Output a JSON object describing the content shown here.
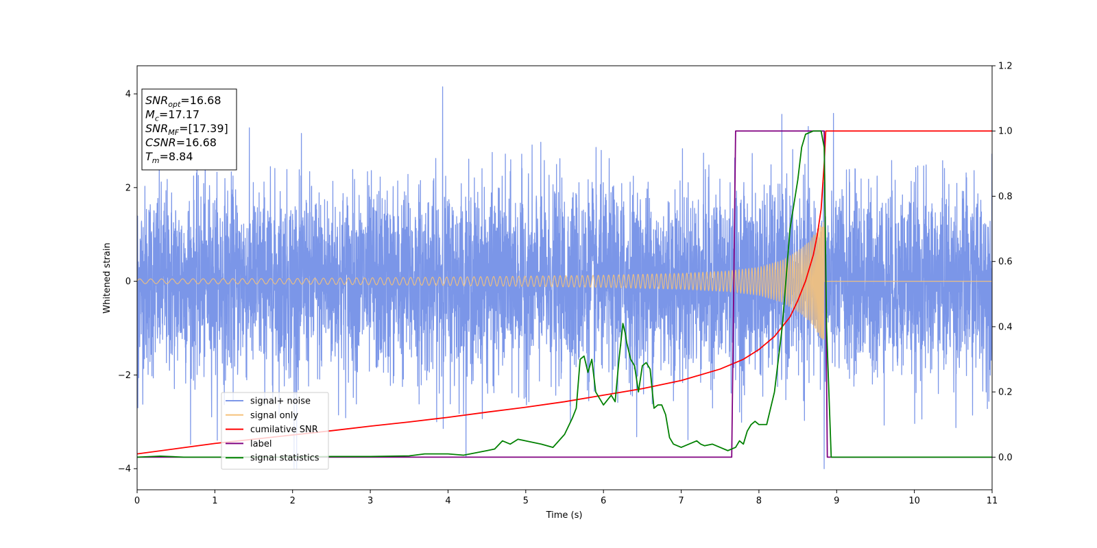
{
  "chart_data": {
    "type": "line",
    "xlabel": "Time (s)",
    "ylabel": "Whitened strain",
    "xlim": [
      0,
      11
    ],
    "ylim": [
      -4.45,
      4.6
    ],
    "y2lim": [
      -0.1,
      1.2
    ],
    "x_ticks": [
      "0",
      "1",
      "2",
      "3",
      "4",
      "5",
      "6",
      "7",
      "8",
      "9",
      "10",
      "11"
    ],
    "y_ticks": [
      "−4",
      "−2",
      "0",
      "2",
      "4"
    ],
    "y2_ticks": [
      "0.0",
      "0.2",
      "0.4",
      "0.6",
      "0.8",
      "1.0",
      "1.2"
    ],
    "grid": false,
    "legend_position": "lower-left",
    "annotation": {
      "lines": [
        {
          "main": "SNR",
          "sub": "opt",
          "value": "=16.68"
        },
        {
          "main": "M",
          "sub": "c",
          "value": "=17.17"
        },
        {
          "main": "SNR",
          "sub": "MF",
          "value": "=[17.39]"
        },
        {
          "main": "CSNR",
          "sub": "",
          "value": "=16.68"
        },
        {
          "main": "T",
          "sub": "m",
          "value": "=8.84"
        }
      ]
    },
    "series": [
      {
        "name": "signal+ noise",
        "axis": "left",
        "color": "#7b96e8",
        "kind": "noise",
        "noise_std": 1.0,
        "noise_peak_range": [
          -4.0,
          4.15
        ],
        "note_points": [
          [
            3.93,
            4.15
          ],
          [
            2.02,
            -4.0
          ],
          [
            8.84,
            -4.05
          ],
          [
            0.01,
            -2.7
          ]
        ]
      },
      {
        "name": "signal only",
        "axis": "left",
        "color": "#f5c27a",
        "kind": "chirp",
        "x_start": 0,
        "x_end": 8.84,
        "amplitude": [
          [
            0,
            0.05
          ],
          [
            2,
            0.06
          ],
          [
            4,
            0.09
          ],
          [
            6,
            0.13
          ],
          [
            7,
            0.17
          ],
          [
            7.6,
            0.22
          ],
          [
            8,
            0.3
          ],
          [
            8.3,
            0.45
          ],
          [
            8.5,
            0.65
          ],
          [
            8.65,
            0.85
          ],
          [
            8.75,
            1.1
          ],
          [
            8.84,
            1.3
          ]
        ]
      },
      {
        "name": "cumilative SNR",
        "axis": "right",
        "color": "#ff0000",
        "x": [
          0,
          0.5,
          1,
          1.5,
          2,
          2.5,
          3,
          3.5,
          4,
          4.5,
          5,
          5.5,
          6,
          6.5,
          7,
          7.5,
          7.8,
          8,
          8.2,
          8.4,
          8.5,
          8.6,
          8.7,
          8.75,
          8.8,
          8.84,
          8.86,
          11
        ],
        "values": [
          0.01,
          0.026,
          0.042,
          0.055,
          0.068,
          0.081,
          0.095,
          0.108,
          0.122,
          0.138,
          0.153,
          0.17,
          0.19,
          0.21,
          0.235,
          0.27,
          0.3,
          0.33,
          0.37,
          0.43,
          0.48,
          0.54,
          0.62,
          0.68,
          0.76,
          0.9,
          1.0,
          1.0
        ]
      },
      {
        "name": "label",
        "axis": "right",
        "color": "#800080",
        "x": [
          0,
          7.65,
          7.7,
          8.84,
          8.88,
          11
        ],
        "values": [
          0,
          0,
          1,
          1,
          0,
          0
        ]
      },
      {
        "name": "signal statistics",
        "axis": "right",
        "color": "#008000",
        "x": [
          0,
          0.3,
          0.6,
          1,
          1.5,
          2,
          2.5,
          3,
          3.5,
          3.7,
          4,
          4.2,
          4.5,
          4.6,
          4.7,
          4.8,
          4.9,
          5,
          5.2,
          5.35,
          5.5,
          5.6,
          5.65,
          5.7,
          5.75,
          5.8,
          5.85,
          5.9,
          6,
          6.1,
          6.15,
          6.2,
          6.25,
          6.28,
          6.3,
          6.35,
          6.4,
          6.45,
          6.5,
          6.55,
          6.6,
          6.65,
          6.7,
          6.75,
          6.8,
          6.85,
          6.9,
          7,
          7.1,
          7.2,
          7.25,
          7.3,
          7.4,
          7.5,
          7.6,
          7.7,
          7.75,
          7.8,
          7.85,
          7.9,
          7.95,
          8,
          8.05,
          8.1,
          8.2,
          8.3,
          8.4,
          8.5,
          8.55,
          8.6,
          8.65,
          8.7,
          8.8,
          8.84,
          8.87,
          8.93,
          9,
          10,
          11
        ],
        "values": [
          0.0,
          0.003,
          0.0,
          0.0,
          0.0,
          0.0,
          0.002,
          0.002,
          0.004,
          0.01,
          0.01,
          0.006,
          0.02,
          0.025,
          0.05,
          0.04,
          0.055,
          0.05,
          0.04,
          0.03,
          0.07,
          0.12,
          0.15,
          0.3,
          0.31,
          0.26,
          0.3,
          0.2,
          0.16,
          0.19,
          0.17,
          0.3,
          0.41,
          0.38,
          0.35,
          0.3,
          0.28,
          0.2,
          0.28,
          0.29,
          0.27,
          0.15,
          0.16,
          0.16,
          0.13,
          0.06,
          0.04,
          0.03,
          0.04,
          0.05,
          0.04,
          0.035,
          0.04,
          0.03,
          0.02,
          0.03,
          0.05,
          0.04,
          0.08,
          0.1,
          0.11,
          0.1,
          0.1,
          0.1,
          0.2,
          0.4,
          0.7,
          0.85,
          0.95,
          0.99,
          0.995,
          1.0,
          1.0,
          0.95,
          0.4,
          0.0,
          0.0,
          0.0,
          0.0
        ]
      }
    ]
  }
}
